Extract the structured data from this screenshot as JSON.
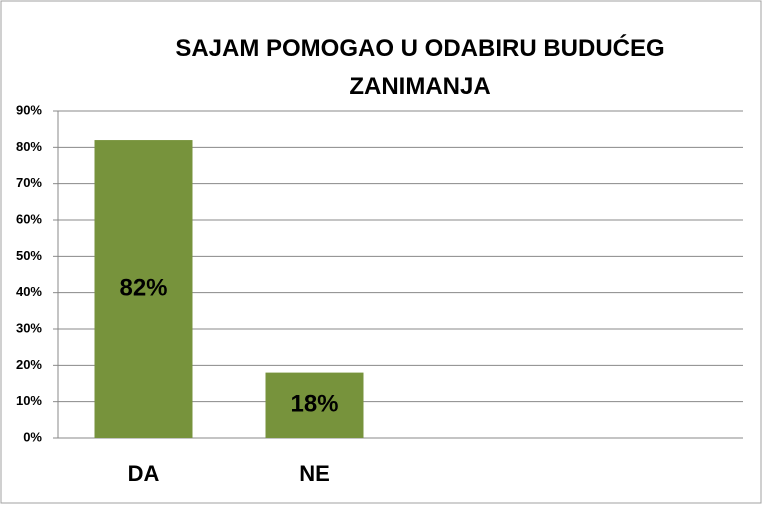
{
  "chart_data": {
    "type": "bar",
    "title": "SAJAM POMOGAO U ODABIRU BUDUĆEG ZANIMANJA",
    "categories": [
      "DA",
      "NE"
    ],
    "values": [
      82,
      18
    ],
    "value_labels": [
      "82%",
      "18%"
    ],
    "color": "#77933c",
    "ylim": [
      0,
      90
    ],
    "yticks": [
      {
        "value": 0,
        "label": "0%"
      },
      {
        "value": 10,
        "label": "10%"
      },
      {
        "value": 20,
        "label": "20%"
      },
      {
        "value": 30,
        "label": "30%"
      },
      {
        "value": 40,
        "label": "40%"
      },
      {
        "value": 50,
        "label": "50%"
      },
      {
        "value": 60,
        "label": "60%"
      },
      {
        "value": 70,
        "label": "70%"
      },
      {
        "value": 80,
        "label": "80%"
      },
      {
        "value": 90,
        "label": "90%"
      }
    ],
    "grid": true
  }
}
